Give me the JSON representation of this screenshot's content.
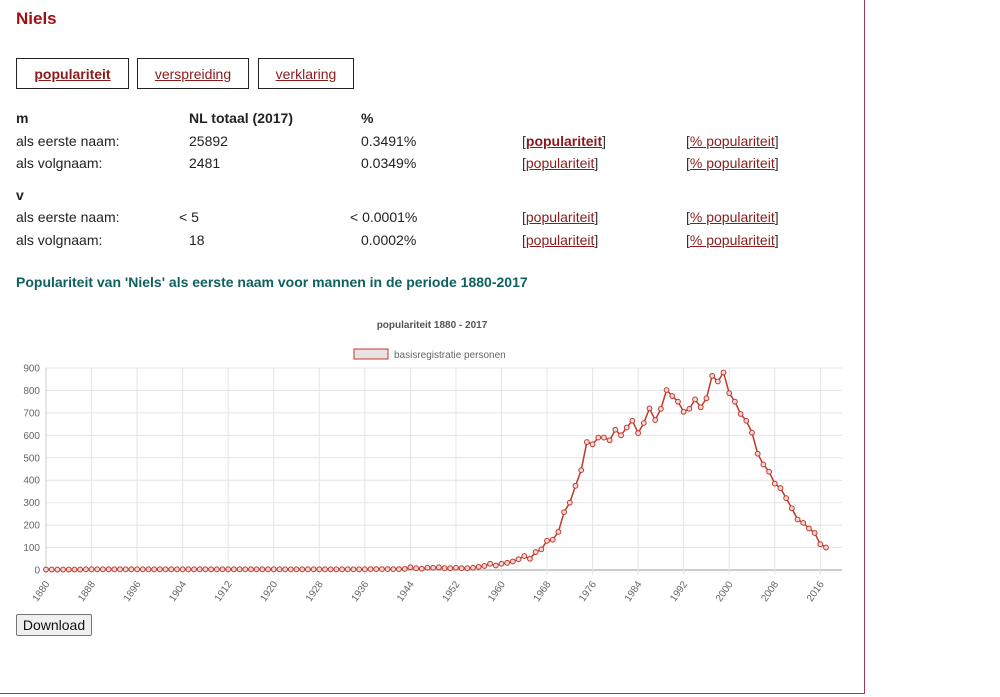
{
  "name": "Niels",
  "tabs": [
    {
      "label": "populariteit",
      "active": true
    },
    {
      "label": "verspreiding",
      "active": false
    },
    {
      "label": "verklaring",
      "active": false
    }
  ],
  "table": {
    "m": {
      "label": "m",
      "col_total": "NL totaal (2017)",
      "col_pct": "%",
      "rows": [
        {
          "label": "als eerste naam:",
          "total": "25892",
          "pct": "0.3491%",
          "pop": "populariteit",
          "pctpop": "% populariteit"
        },
        {
          "label": "als volgnaam:",
          "total": "2481",
          "pct": "0.0349%",
          "pop": "populariteit",
          "pctpop": "% populariteit"
        }
      ]
    },
    "v": {
      "label": "v",
      "rows": [
        {
          "label": "als eerste naam:",
          "total": "< 5",
          "pct": "< 0.0001%",
          "pop": "populariteit",
          "pctpop": "% populariteit"
        },
        {
          "label": "als volgnaam:",
          "total": "18",
          "pct": "0.0002%",
          "pop": "populariteit",
          "pctpop": "% populariteit"
        }
      ]
    },
    "bracket_open": "[",
    "bracket_close": "]"
  },
  "section_title": "Populariteit van 'Niels' als eerste naam voor mannen in de periode 1880-2017",
  "chart_data": {
    "type": "line",
    "title": "populariteit 1880 - 2017",
    "legend": "top-center",
    "grid": true,
    "ylim": [
      0,
      900
    ],
    "yticks": [
      0,
      100,
      200,
      300,
      400,
      500,
      600,
      700,
      800,
      900
    ],
    "xticks": [
      1880,
      1888,
      1896,
      1904,
      1912,
      1920,
      1928,
      1936,
      1944,
      1952,
      1960,
      1968,
      1976,
      1984,
      1992,
      2000,
      2008,
      2016
    ],
    "x": [
      1880,
      1881,
      1882,
      1883,
      1884,
      1885,
      1886,
      1887,
      1888,
      1889,
      1890,
      1891,
      1892,
      1893,
      1894,
      1895,
      1896,
      1897,
      1898,
      1899,
      1900,
      1901,
      1902,
      1903,
      1904,
      1905,
      1906,
      1907,
      1908,
      1909,
      1910,
      1911,
      1912,
      1913,
      1914,
      1915,
      1916,
      1917,
      1918,
      1919,
      1920,
      1921,
      1922,
      1923,
      1924,
      1925,
      1926,
      1927,
      1928,
      1929,
      1930,
      1931,
      1932,
      1933,
      1934,
      1935,
      1936,
      1937,
      1938,
      1939,
      1940,
      1941,
      1942,
      1943,
      1944,
      1945,
      1946,
      1947,
      1948,
      1949,
      1950,
      1951,
      1952,
      1953,
      1954,
      1955,
      1956,
      1957,
      1958,
      1959,
      1960,
      1961,
      1962,
      1963,
      1964,
      1965,
      1966,
      1967,
      1968,
      1969,
      1970,
      1971,
      1972,
      1973,
      1974,
      1975,
      1976,
      1977,
      1978,
      1979,
      1980,
      1981,
      1982,
      1983,
      1984,
      1985,
      1986,
      1987,
      1988,
      1989,
      1990,
      1991,
      1992,
      1993,
      1994,
      1995,
      1996,
      1997,
      1998,
      1999,
      2000,
      2001,
      2002,
      2003,
      2004,
      2005,
      2006,
      2007,
      2008,
      2009,
      2010,
      2011,
      2012,
      2013,
      2014,
      2015,
      2016,
      2017
    ],
    "series": [
      {
        "name": "basisregistratie personen",
        "color": "#c0392b",
        "fill": "#e8e3e3",
        "values": [
          2,
          2,
          2,
          2,
          2,
          2,
          2,
          3,
          3,
          3,
          3,
          3,
          3,
          3,
          3,
          3,
          3,
          3,
          3,
          3,
          3,
          3,
          3,
          3,
          3,
          3,
          3,
          3,
          3,
          3,
          3,
          3,
          3,
          3,
          3,
          3,
          3,
          3,
          3,
          3,
          3,
          3,
          3,
          3,
          3,
          3,
          3,
          3,
          3,
          3,
          3,
          3,
          3,
          3,
          3,
          3,
          3,
          4,
          4,
          4,
          4,
          4,
          4,
          5,
          12,
          8,
          6,
          10,
          10,
          12,
          8,
          8,
          10,
          8,
          8,
          10,
          14,
          18,
          28,
          20,
          28,
          32,
          38,
          48,
          62,
          50,
          80,
          92,
          130,
          135,
          170,
          258,
          300,
          375,
          445,
          570,
          560,
          590,
          590,
          578,
          625,
          600,
          635,
          665,
          610,
          655,
          720,
          668,
          718,
          802,
          775,
          750,
          705,
          718,
          760,
          725,
          765,
          865,
          840,
          880,
          788,
          750,
          695,
          665,
          612,
          518,
          470,
          438,
          385,
          365,
          320,
          275,
          225,
          210,
          185,
          165,
          115,
          100
        ]
      }
    ]
  },
  "download_label": "Download"
}
